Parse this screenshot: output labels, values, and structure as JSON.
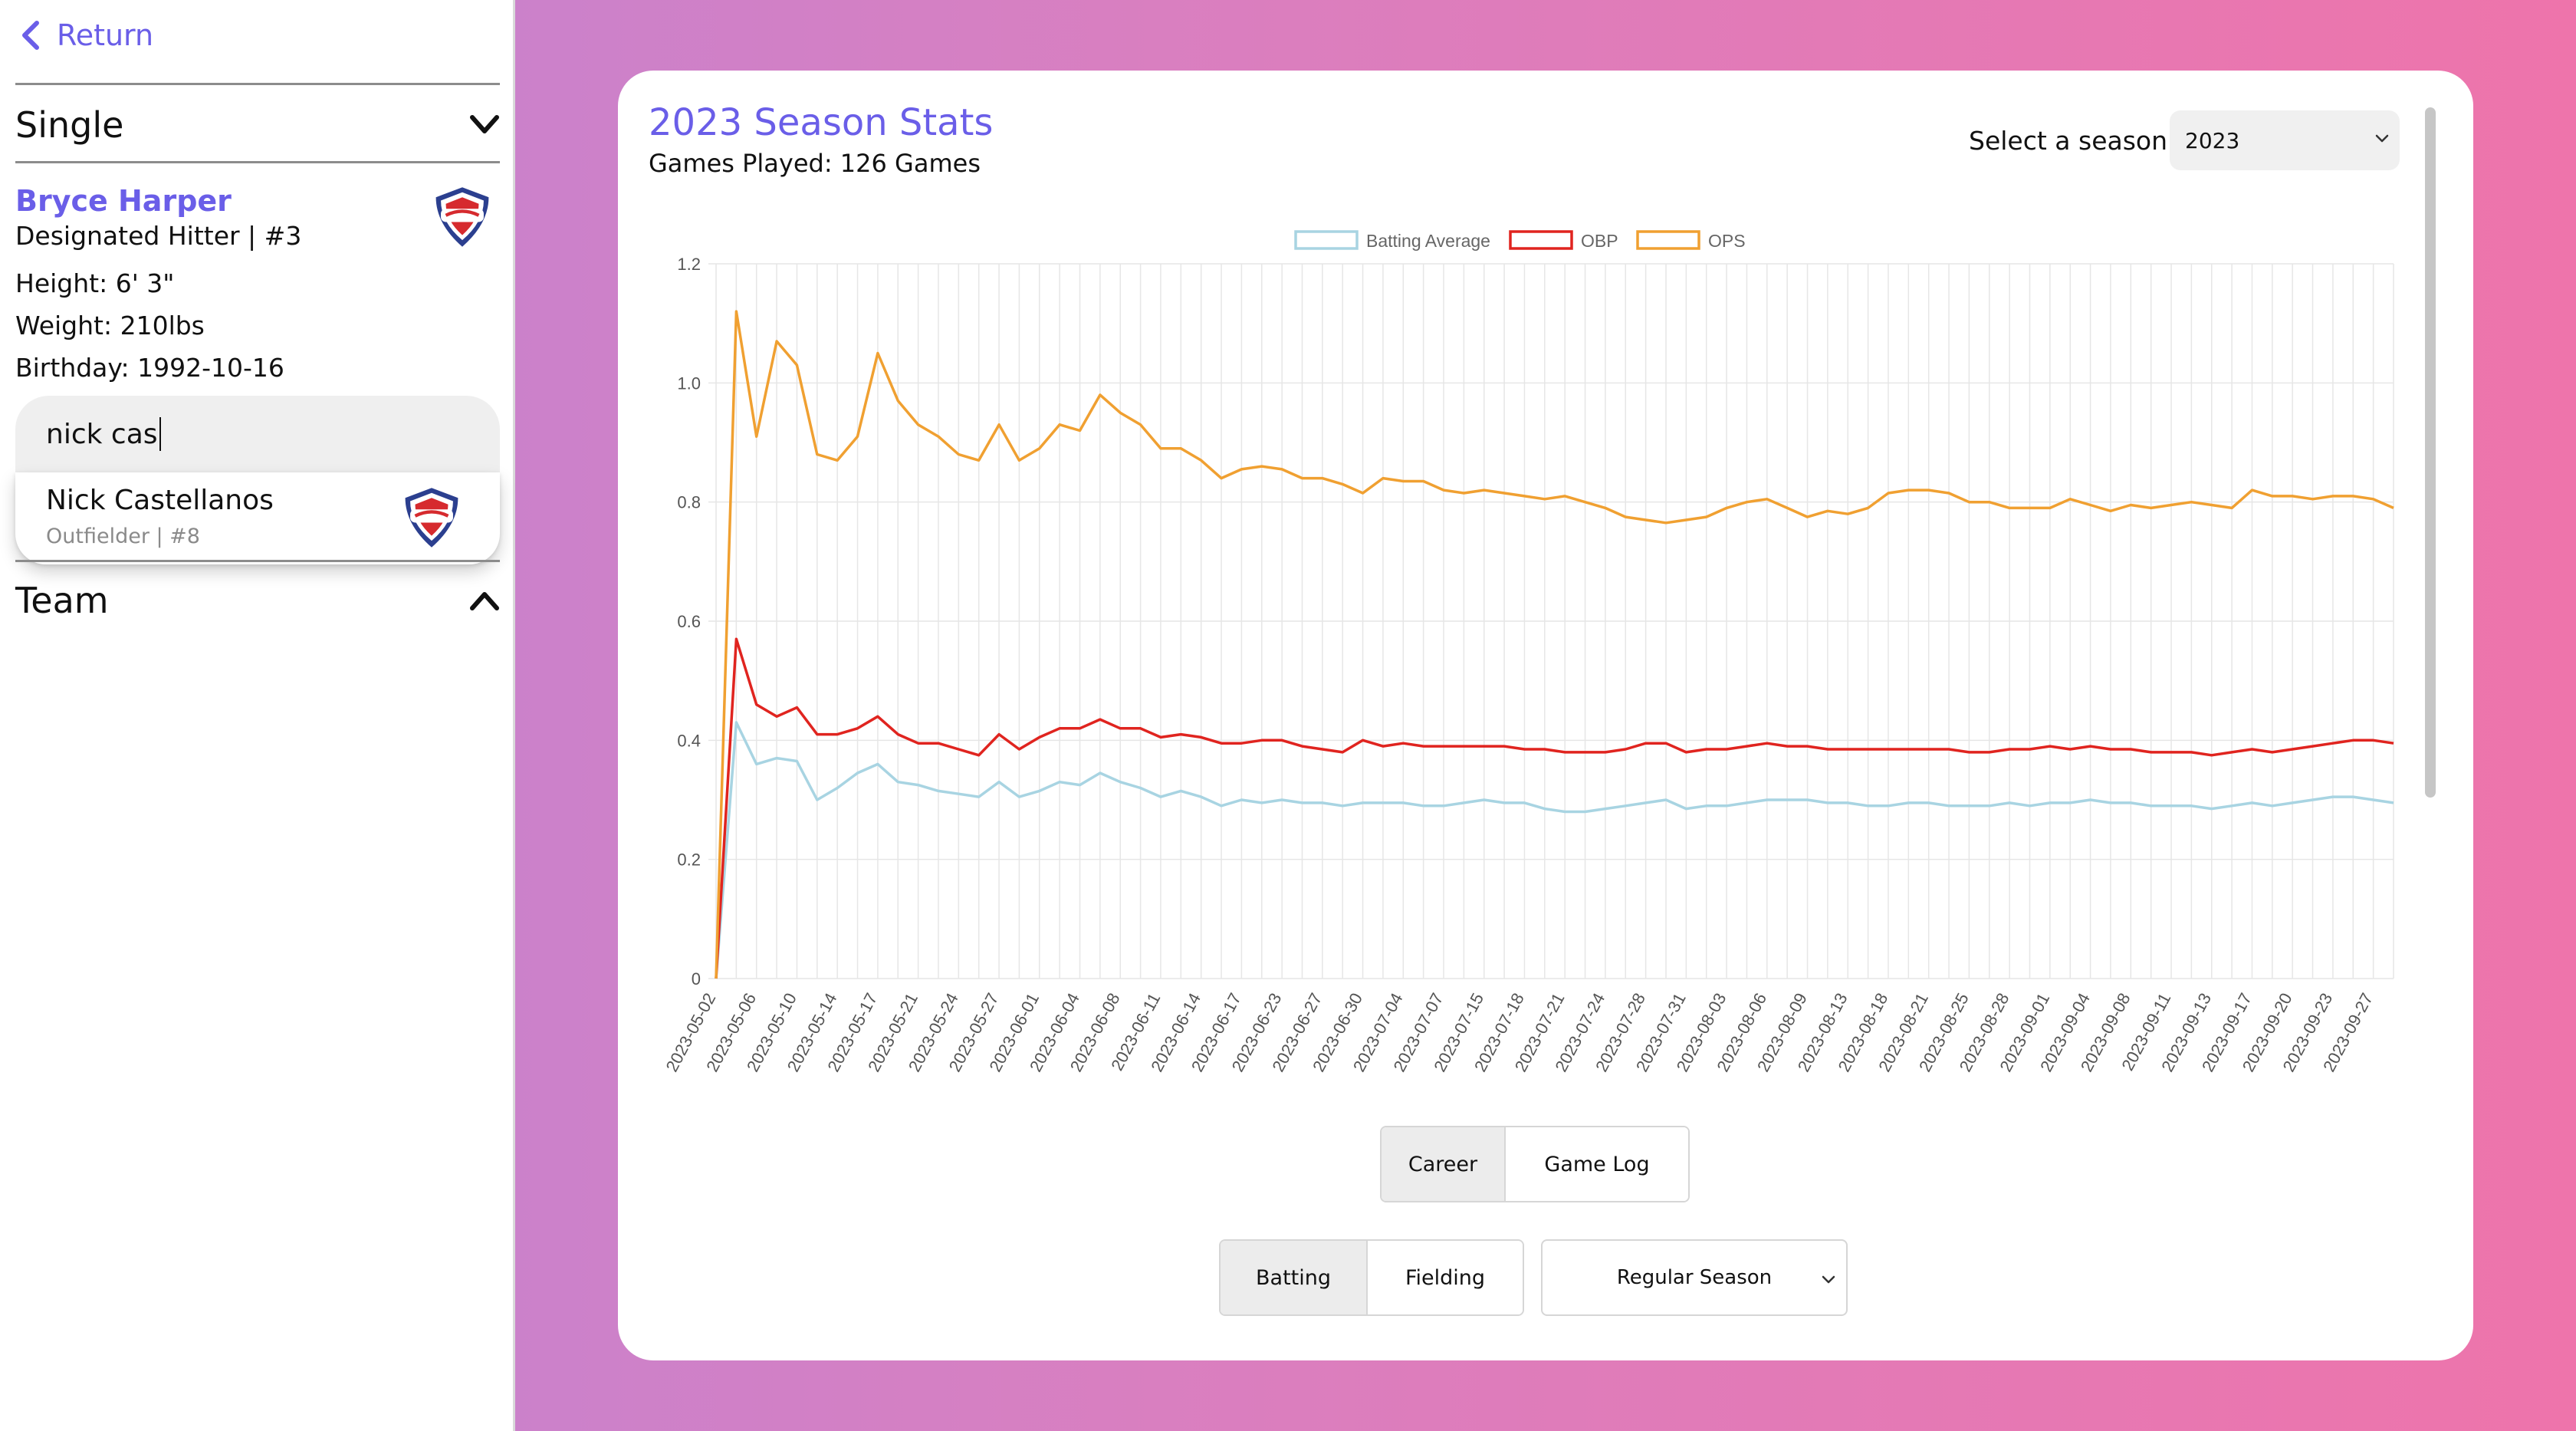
{
  "sidebar": {
    "return_label": "Return",
    "mode_label": "Single",
    "team_label": "Team",
    "player": {
      "name": "Bryce Harper",
      "position_number": "Designated Hitter | #3",
      "height": "Height: 6' 3\"",
      "weight": "Weight: 210lbs",
      "birthday": "Birthday: 1992-10-16"
    },
    "search": {
      "value": "nick cas"
    },
    "suggestion": {
      "name": "Nick Castellanos",
      "sub": "Outfielder | #8"
    }
  },
  "main": {
    "title": "2023 Season Stats",
    "games_played": "Games Played: 126 Games",
    "season_label": "Select a season:",
    "season_value": "2023",
    "view_buttons": [
      "Career",
      "Game Log"
    ],
    "stat_buttons": [
      "Batting",
      "Fielding"
    ],
    "season_type": "Regular Season"
  },
  "colors": {
    "accent": "#6a5ee8",
    "avg": "#a8d4e2",
    "obp": "#e0241f",
    "ops": "#f0a031"
  },
  "icons": [
    "chevron-left-icon",
    "chevron-down-icon",
    "chevron-up-icon",
    "phillies-logo-icon"
  ],
  "chart_data": {
    "type": "line",
    "legend": [
      "Batting Average",
      "OBP",
      "OPS"
    ],
    "legend_position": "top",
    "grid": true,
    "ylim": [
      0,
      1.2
    ],
    "yticks": [
      "0",
      "0.2",
      "0.4",
      "0.6",
      "0.8",
      "1.0",
      "1.2"
    ],
    "xticks": [
      "2023-05-02",
      "2023-05-06",
      "2023-05-10",
      "2023-05-14",
      "2023-05-17",
      "2023-05-21",
      "2023-05-24",
      "2023-05-27",
      "2023-06-01",
      "2023-06-04",
      "2023-06-08",
      "2023-06-11",
      "2023-06-14",
      "2023-06-17",
      "2023-06-23",
      "2023-06-27",
      "2023-06-30",
      "2023-07-04",
      "2023-07-07",
      "2023-07-15",
      "2023-07-18",
      "2023-07-21",
      "2023-07-24",
      "2023-07-28",
      "2023-07-31",
      "2023-08-03",
      "2023-08-06",
      "2023-08-09",
      "2023-08-13",
      "2023-08-18",
      "2023-08-21",
      "2023-08-25",
      "2023-08-28",
      "2023-09-01",
      "2023-09-04",
      "2023-09-08",
      "2023-09-11",
      "2023-09-13",
      "2023-09-17",
      "2023-09-20",
      "2023-09-23",
      "2023-09-27"
    ],
    "n_points": 84,
    "series": [
      {
        "name": "Batting Average",
        "color": "#a8d4e2",
        "values": [
          0.0,
          0.43,
          0.36,
          0.37,
          0.365,
          0.3,
          0.32,
          0.345,
          0.36,
          0.33,
          0.325,
          0.315,
          0.31,
          0.305,
          0.33,
          0.305,
          0.315,
          0.33,
          0.325,
          0.345,
          0.33,
          0.32,
          0.305,
          0.315,
          0.305,
          0.29,
          0.3,
          0.295,
          0.3,
          0.295,
          0.295,
          0.29,
          0.295,
          0.295,
          0.295,
          0.29,
          0.29,
          0.295,
          0.3,
          0.295,
          0.295,
          0.285,
          0.28,
          0.28,
          0.285,
          0.29,
          0.295,
          0.3,
          0.285,
          0.29,
          0.29,
          0.295,
          0.3,
          0.3,
          0.3,
          0.295,
          0.295,
          0.29,
          0.29,
          0.295,
          0.295,
          0.29,
          0.29,
          0.29,
          0.295,
          0.29,
          0.295,
          0.295,
          0.3,
          0.295,
          0.295,
          0.29,
          0.29,
          0.29,
          0.285,
          0.29,
          0.295,
          0.29,
          0.295,
          0.3,
          0.305,
          0.305,
          0.3,
          0.295
        ]
      },
      {
        "name": "OBP",
        "color": "#e0241f",
        "values": [
          0.0,
          0.57,
          0.46,
          0.44,
          0.455,
          0.41,
          0.41,
          0.42,
          0.44,
          0.41,
          0.395,
          0.395,
          0.385,
          0.375,
          0.41,
          0.385,
          0.405,
          0.42,
          0.42,
          0.435,
          0.42,
          0.42,
          0.405,
          0.41,
          0.405,
          0.395,
          0.395,
          0.4,
          0.4,
          0.39,
          0.385,
          0.38,
          0.4,
          0.39,
          0.395,
          0.39,
          0.39,
          0.39,
          0.39,
          0.39,
          0.385,
          0.385,
          0.38,
          0.38,
          0.38,
          0.385,
          0.395,
          0.395,
          0.38,
          0.385,
          0.385,
          0.39,
          0.395,
          0.39,
          0.39,
          0.385,
          0.385,
          0.385,
          0.385,
          0.385,
          0.385,
          0.385,
          0.38,
          0.38,
          0.385,
          0.385,
          0.39,
          0.385,
          0.39,
          0.385,
          0.385,
          0.38,
          0.38,
          0.38,
          0.375,
          0.38,
          0.385,
          0.38,
          0.385,
          0.39,
          0.395,
          0.4,
          0.4,
          0.395
        ]
      },
      {
        "name": "OPS",
        "color": "#f0a031",
        "values": [
          0.0,
          1.12,
          0.91,
          1.07,
          1.03,
          0.88,
          0.87,
          0.91,
          1.05,
          0.97,
          0.93,
          0.91,
          0.88,
          0.87,
          0.93,
          0.87,
          0.89,
          0.93,
          0.92,
          0.98,
          0.95,
          0.93,
          0.89,
          0.89,
          0.87,
          0.84,
          0.855,
          0.86,
          0.855,
          0.84,
          0.84,
          0.83,
          0.815,
          0.84,
          0.835,
          0.835,
          0.82,
          0.815,
          0.82,
          0.815,
          0.81,
          0.805,
          0.81,
          0.8,
          0.79,
          0.775,
          0.77,
          0.765,
          0.77,
          0.775,
          0.79,
          0.8,
          0.805,
          0.79,
          0.775,
          0.785,
          0.78,
          0.79,
          0.815,
          0.82,
          0.82,
          0.815,
          0.8,
          0.8,
          0.79,
          0.79,
          0.79,
          0.805,
          0.795,
          0.785,
          0.795,
          0.79,
          0.795,
          0.8,
          0.795,
          0.79,
          0.82,
          0.81,
          0.81,
          0.805,
          0.81,
          0.81,
          0.805,
          0.79
        ]
      }
    ]
  }
}
